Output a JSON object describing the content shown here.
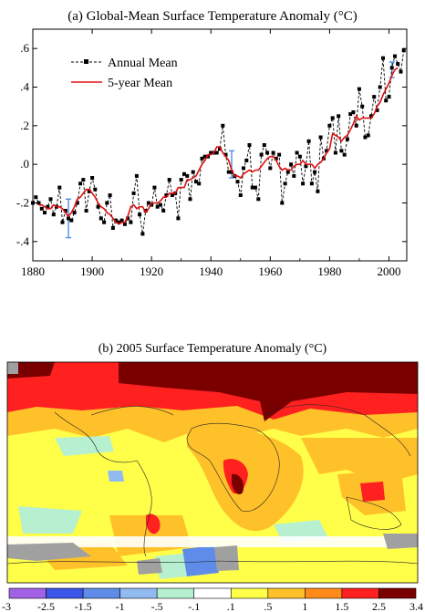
{
  "chart_data": [
    {
      "type": "line",
      "title": "(a)  Global-Mean Surface Temperature Anomaly (°C)",
      "xlabel": "",
      "ylabel": "",
      "xlim": [
        1880,
        2006
      ],
      "ylim": [
        -0.5,
        0.7
      ],
      "x_ticks": [
        1880,
        1900,
        1920,
        1940,
        1960,
        1980,
        2000
      ],
      "y_ticks": [
        -0.4,
        -0.2,
        0.0,
        0.2,
        0.4,
        0.6
      ],
      "y_tick_labels": [
        "-.4",
        "-.2",
        ".0",
        ".2",
        ".4",
        ".6"
      ],
      "legend_position": "top-left",
      "series": [
        {
          "name": "Annual Mean",
          "style": "dashed-with-square-markers",
          "color": "#000000",
          "x": [
            1880,
            1881,
            1882,
            1883,
            1884,
            1885,
            1886,
            1887,
            1888,
            1889,
            1890,
            1891,
            1892,
            1893,
            1894,
            1895,
            1896,
            1897,
            1898,
            1899,
            1900,
            1901,
            1902,
            1903,
            1904,
            1905,
            1906,
            1907,
            1908,
            1909,
            1910,
            1911,
            1912,
            1913,
            1914,
            1915,
            1916,
            1917,
            1918,
            1919,
            1920,
            1921,
            1922,
            1923,
            1924,
            1925,
            1926,
            1927,
            1928,
            1929,
            1930,
            1931,
            1932,
            1933,
            1934,
            1935,
            1936,
            1937,
            1938,
            1939,
            1940,
            1941,
            1942,
            1943,
            1944,
            1945,
            1946,
            1947,
            1948,
            1949,
            1950,
            1951,
            1952,
            1953,
            1954,
            1955,
            1956,
            1957,
            1958,
            1959,
            1960,
            1961,
            1962,
            1963,
            1964,
            1965,
            1966,
            1967,
            1968,
            1969,
            1970,
            1971,
            1972,
            1973,
            1974,
            1975,
            1976,
            1977,
            1978,
            1979,
            1980,
            1981,
            1982,
            1983,
            1984,
            1985,
            1986,
            1987,
            1988,
            1989,
            1990,
            1991,
            1992,
            1993,
            1994,
            1995,
            1996,
            1997,
            1998,
            1999,
            2000,
            2001,
            2002,
            2003,
            2004,
            2005
          ],
          "y": [
            -0.2,
            -0.17,
            -0.2,
            -0.23,
            -0.25,
            -0.22,
            -0.18,
            -0.26,
            -0.22,
            -0.12,
            -0.3,
            -0.24,
            -0.28,
            -0.29,
            -0.25,
            -0.2,
            -0.1,
            -0.08,
            -0.24,
            -0.14,
            -0.07,
            -0.13,
            -0.22,
            -0.28,
            -0.3,
            -0.2,
            -0.16,
            -0.33,
            -0.29,
            -0.3,
            -0.29,
            -0.31,
            -0.28,
            -0.3,
            -0.15,
            -0.06,
            -0.26,
            -0.36,
            -0.24,
            -0.2,
            -0.21,
            -0.12,
            -0.22,
            -0.21,
            -0.24,
            -0.16,
            -0.08,
            -0.16,
            -0.15,
            -0.28,
            -0.08,
            -0.05,
            -0.06,
            -0.18,
            -0.04,
            -0.09,
            -0.1,
            0.03,
            0.04,
            0.04,
            0.06,
            0.06,
            0.06,
            0.08,
            0.2,
            0.05,
            -0.04,
            -0.04,
            -0.06,
            -0.09,
            -0.16,
            -0.02,
            0.02,
            0.1,
            -0.12,
            -0.12,
            -0.18,
            0.05,
            0.1,
            0.06,
            -0.02,
            0.06,
            0.03,
            0.05,
            -0.2,
            -0.1,
            -0.04,
            0.0,
            -0.06,
            0.06,
            0.04,
            -0.1,
            -0.01,
            0.12,
            -0.1,
            -0.04,
            -0.14,
            0.14,
            0.03,
            0.07,
            0.2,
            0.24,
            0.06,
            0.25,
            0.07,
            0.05,
            0.13,
            0.26,
            0.27,
            0.2,
            0.39,
            0.3,
            0.14,
            0.15,
            0.25,
            0.35,
            0.28,
            0.4,
            0.55,
            0.33,
            0.35,
            0.5,
            0.56,
            0.52,
            0.48,
            0.59
          ]
        },
        {
          "name": "5-year Mean",
          "style": "solid",
          "color": "#e01010",
          "x": [
            1882,
            1883,
            1884,
            1885,
            1886,
            1887,
            1888,
            1889,
            1890,
            1891,
            1892,
            1893,
            1894,
            1895,
            1896,
            1897,
            1898,
            1899,
            1900,
            1901,
            1902,
            1903,
            1904,
            1905,
            1906,
            1907,
            1908,
            1909,
            1910,
            1911,
            1912,
            1913,
            1914,
            1915,
            1916,
            1917,
            1918,
            1919,
            1920,
            1921,
            1922,
            1923,
            1924,
            1925,
            1926,
            1927,
            1928,
            1929,
            1930,
            1931,
            1932,
            1933,
            1934,
            1935,
            1936,
            1937,
            1938,
            1939,
            1940,
            1941,
            1942,
            1943,
            1944,
            1945,
            1946,
            1947,
            1948,
            1949,
            1950,
            1951,
            1952,
            1953,
            1954,
            1955,
            1956,
            1957,
            1958,
            1959,
            1960,
            1961,
            1962,
            1963,
            1964,
            1965,
            1966,
            1967,
            1968,
            1969,
            1970,
            1971,
            1972,
            1973,
            1974,
            1975,
            1976,
            1977,
            1978,
            1979,
            1980,
            1981,
            1982,
            1983,
            1984,
            1985,
            1986,
            1987,
            1988,
            1989,
            1990,
            1991,
            1992,
            1993,
            1994,
            1995,
            1996,
            1997,
            1998,
            1999,
            2000,
            2001,
            2002,
            2003
          ],
          "y": [
            -0.21,
            -0.21,
            -0.22,
            -0.23,
            -0.23,
            -0.21,
            -0.22,
            -0.22,
            -0.23,
            -0.25,
            -0.27,
            -0.25,
            -0.22,
            -0.18,
            -0.17,
            -0.15,
            -0.13,
            -0.13,
            -0.15,
            -0.17,
            -0.2,
            -0.22,
            -0.23,
            -0.25,
            -0.26,
            -0.28,
            -0.3,
            -0.31,
            -0.3,
            -0.3,
            -0.27,
            -0.22,
            -0.21,
            -0.23,
            -0.22,
            -0.22,
            -0.25,
            -0.23,
            -0.2,
            -0.2,
            -0.2,
            -0.19,
            -0.17,
            -0.17,
            -0.15,
            -0.15,
            -0.15,
            -0.12,
            -0.12,
            -0.12,
            -0.08,
            -0.08,
            -0.07,
            -0.06,
            -0.03,
            0.0,
            0.02,
            0.05,
            0.05,
            0.06,
            0.09,
            0.09,
            0.06,
            0.04,
            0.02,
            -0.03,
            -0.06,
            -0.06,
            -0.07,
            -0.05,
            -0.04,
            -0.03,
            -0.04,
            -0.03,
            -0.03,
            -0.01,
            0.01,
            0.03,
            0.04,
            0.04,
            0.02,
            -0.01,
            -0.03,
            -0.02,
            -0.03,
            -0.03,
            -0.01,
            0.0,
            0.0,
            0.02,
            0.0,
            0.0,
            0.0,
            -0.02,
            0.0,
            0.01,
            0.03,
            0.06,
            0.08,
            0.16,
            0.15,
            0.14,
            0.12,
            0.14,
            0.15,
            0.18,
            0.21,
            0.25,
            0.23,
            0.24,
            0.24,
            0.24,
            0.24,
            0.26,
            0.3,
            0.32,
            0.36,
            0.39,
            0.42,
            0.46,
            0.49,
            0.5
          ]
        }
      ],
      "error_bars": [
        {
          "x": 1892,
          "low": -0.38,
          "high": -0.18
        },
        {
          "x": 1947,
          "low": -0.07,
          "high": 0.07
        },
        {
          "x": 2001,
          "low": 0.45,
          "high": 0.53
        }
      ],
      "error_bar_color": "#4a8ee8"
    },
    {
      "type": "heatmap",
      "title": "(b) 2005 Surface Temperature Anomaly (°C)",
      "colorbar": {
        "tick_labels": [
          "-3",
          "-2.5",
          "-1.5",
          "-1",
          "-.5",
          "-.1",
          ".1",
          ".5",
          "1",
          "1.5",
          "2.5",
          "3.4"
        ],
        "colors": [
          "#a262e6",
          "#3b56e8",
          "#5f8ce8",
          "#90baf0",
          "#b6f0d0",
          "#ffffff",
          "#ffff4a",
          "#ffc12a",
          "#ff8a1a",
          "#ff2020",
          "#7a0000"
        ]
      },
      "missing_color": "#a0a0a0"
    }
  ],
  "legend": {
    "annual_label": "Annual Mean",
    "five_year_label": "5-year Mean"
  }
}
